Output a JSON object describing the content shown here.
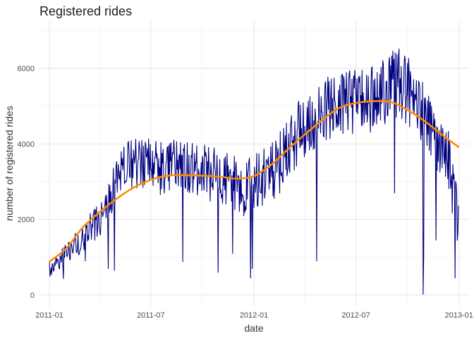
{
  "chart_data": {
    "type": "line",
    "title": "Registered rides",
    "xlabel": "date",
    "ylabel": "number of registered rides",
    "x_range": [
      "2010-12-13",
      "2013-01-19"
    ],
    "ylim": [
      -300,
      7250
    ],
    "grid": true,
    "x_ticks": [
      {
        "date": "2011-01-01",
        "label": "2011-01"
      },
      {
        "date": "2011-07-01",
        "label": "2011-07"
      },
      {
        "date": "2012-01-01",
        "label": "2012-01"
      },
      {
        "date": "2012-07-01",
        "label": "2012-07"
      },
      {
        "date": "2013-01-01",
        "label": "2013-01"
      }
    ],
    "y_ticks": [
      {
        "value": 0,
        "label": "0"
      },
      {
        "value": 2000,
        "label": "2000"
      },
      {
        "value": 4000,
        "label": "4000"
      },
      {
        "value": 6000,
        "label": "6000"
      }
    ],
    "series": [
      {
        "color": "#00007f",
        "anchors": [
          {
            "date": "2011-01-01",
            "y": 650
          },
          {
            "date": "2011-01-15",
            "y": 900
          },
          {
            "date": "2011-02-01",
            "y": 1100
          },
          {
            "date": "2011-02-15",
            "y": 1350
          },
          {
            "date": "2011-03-01",
            "y": 1500
          },
          {
            "date": "2011-03-15",
            "y": 1750
          },
          {
            "date": "2011-04-01",
            "y": 2000
          },
          {
            "date": "2011-04-15",
            "y": 2400
          },
          {
            "date": "2011-05-01",
            "y": 3100
          },
          {
            "date": "2011-05-15",
            "y": 3400
          },
          {
            "date": "2011-06-01",
            "y": 3500
          },
          {
            "date": "2011-06-15",
            "y": 3550
          },
          {
            "date": "2011-07-01",
            "y": 3400
          },
          {
            "date": "2011-07-15",
            "y": 3350
          },
          {
            "date": "2011-08-01",
            "y": 3400
          },
          {
            "date": "2011-08-15",
            "y": 3450
          },
          {
            "date": "2011-09-01",
            "y": 3400
          },
          {
            "date": "2011-09-15",
            "y": 3300
          },
          {
            "date": "2011-10-01",
            "y": 3250
          },
          {
            "date": "2011-10-15",
            "y": 3200
          },
          {
            "date": "2011-11-01",
            "y": 3100
          },
          {
            "date": "2011-11-15",
            "y": 3050
          },
          {
            "date": "2011-12-01",
            "y": 2900
          },
          {
            "date": "2011-12-15",
            "y": 2800
          },
          {
            "date": "2012-01-01",
            "y": 3000
          },
          {
            "date": "2012-01-15",
            "y": 3000
          },
          {
            "date": "2012-02-01",
            "y": 3300
          },
          {
            "date": "2012-02-15",
            "y": 3450
          },
          {
            "date": "2012-03-01",
            "y": 3900
          },
          {
            "date": "2012-03-15",
            "y": 4200
          },
          {
            "date": "2012-04-01",
            "y": 4500
          },
          {
            "date": "2012-04-15",
            "y": 4650
          },
          {
            "date": "2012-05-01",
            "y": 4800
          },
          {
            "date": "2012-05-15",
            "y": 4950
          },
          {
            "date": "2012-06-01",
            "y": 5050
          },
          {
            "date": "2012-06-15",
            "y": 5100
          },
          {
            "date": "2012-07-01",
            "y": 5150
          },
          {
            "date": "2012-07-15",
            "y": 5150
          },
          {
            "date": "2012-08-01",
            "y": 5250
          },
          {
            "date": "2012-08-15",
            "y": 5350
          },
          {
            "date": "2012-09-01",
            "y": 5500
          },
          {
            "date": "2012-09-15",
            "y": 5650
          },
          {
            "date": "2012-10-01",
            "y": 5450
          },
          {
            "date": "2012-10-15",
            "y": 5250
          },
          {
            "date": "2012-11-01",
            "y": 4600
          },
          {
            "date": "2012-11-15",
            "y": 4300
          },
          {
            "date": "2012-12-01",
            "y": 4000
          },
          {
            "date": "2012-12-15",
            "y": 3500
          },
          {
            "date": "2012-12-31",
            "y": 1700
          }
        ],
        "noise_amplitude": [
          {
            "date": "2011-01-01",
            "a": 250
          },
          {
            "date": "2011-04-01",
            "a": 450
          },
          {
            "date": "2011-06-01",
            "a": 700
          },
          {
            "date": "2011-12-01",
            "a": 750
          },
          {
            "date": "2012-03-01",
            "a": 850
          },
          {
            "date": "2012-07-01",
            "a": 900
          },
          {
            "date": "2012-10-01",
            "a": 950
          },
          {
            "date": "2012-12-31",
            "a": 800
          }
        ],
        "spikes": [
          {
            "date": "2011-01-26",
            "y": 430
          },
          {
            "date": "2011-03-06",
            "y": 900
          },
          {
            "date": "2011-04-16",
            "y": 700
          },
          {
            "date": "2011-04-27",
            "y": 650
          },
          {
            "date": "2011-08-27",
            "y": 880
          },
          {
            "date": "2011-10-29",
            "y": 600
          },
          {
            "date": "2011-11-24",
            "y": 1100
          },
          {
            "date": "2011-12-26",
            "y": 450
          },
          {
            "date": "2011-12-29",
            "y": 700
          },
          {
            "date": "2012-04-22",
            "y": 900
          },
          {
            "date": "2012-09-08",
            "y": 2700
          },
          {
            "date": "2012-10-29",
            "y": 20
          },
          {
            "date": "2012-10-30",
            "y": 1000
          },
          {
            "date": "2012-11-21",
            "y": 1450
          },
          {
            "date": "2012-12-25",
            "y": 450
          }
        ]
      },
      {
        "color": "#ff8c00",
        "smooth": [
          {
            "date": "2011-01-01",
            "y": 880
          },
          {
            "date": "2011-02-01",
            "y": 1250
          },
          {
            "date": "2011-03-01",
            "y": 1780
          },
          {
            "date": "2011-04-01",
            "y": 2200
          },
          {
            "date": "2011-05-01",
            "y": 2550
          },
          {
            "date": "2011-06-01",
            "y": 2850
          },
          {
            "date": "2011-07-01",
            "y": 3050
          },
          {
            "date": "2011-08-01",
            "y": 3160
          },
          {
            "date": "2011-09-01",
            "y": 3170
          },
          {
            "date": "2011-10-01",
            "y": 3160
          },
          {
            "date": "2011-11-01",
            "y": 3130
          },
          {
            "date": "2011-12-01",
            "y": 3080
          },
          {
            "date": "2012-01-01",
            "y": 3150
          },
          {
            "date": "2012-02-01",
            "y": 3450
          },
          {
            "date": "2012-03-01",
            "y": 3850
          },
          {
            "date": "2012-04-01",
            "y": 4250
          },
          {
            "date": "2012-05-01",
            "y": 4620
          },
          {
            "date": "2012-06-01",
            "y": 4950
          },
          {
            "date": "2012-07-01",
            "y": 5080
          },
          {
            "date": "2012-08-01",
            "y": 5130
          },
          {
            "date": "2012-09-01",
            "y": 5110
          },
          {
            "date": "2012-10-01",
            "y": 4900
          },
          {
            "date": "2012-11-01",
            "y": 4600
          },
          {
            "date": "2012-12-01",
            "y": 4250
          },
          {
            "date": "2012-12-31",
            "y": 3920
          }
        ]
      }
    ]
  }
}
